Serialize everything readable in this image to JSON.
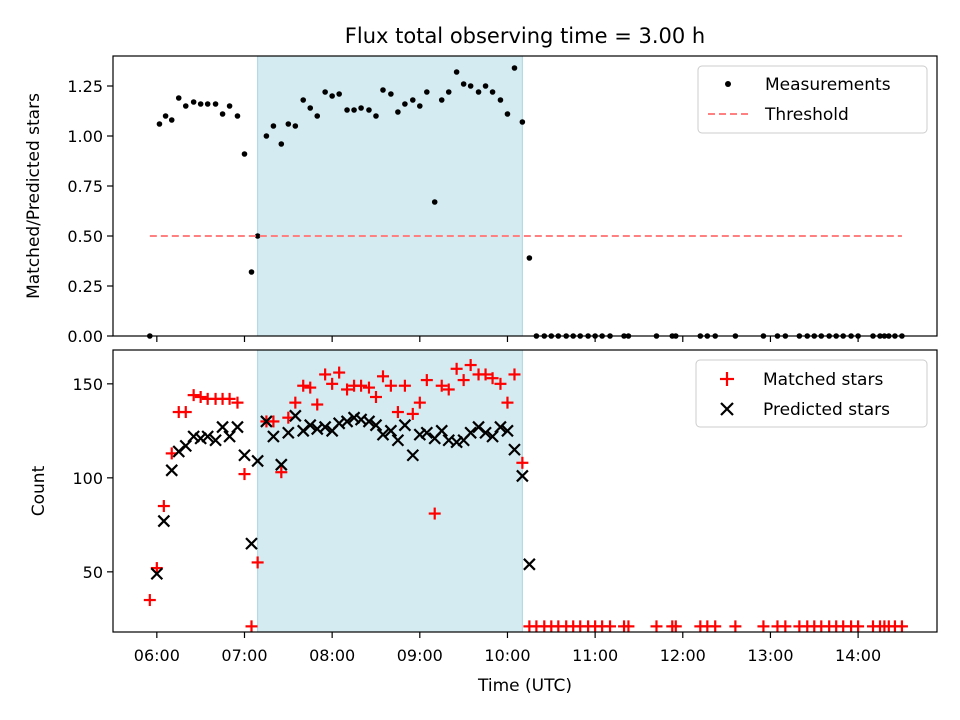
{
  "chart_data": {
    "title": "Flux total observing time = 3.00 h",
    "xlabel": "Time (UTC)",
    "x_ticks": [
      "06:00",
      "07:00",
      "08:00",
      "09:00",
      "10:00",
      "11:00",
      "12:00",
      "13:00",
      "14:00"
    ],
    "x_tick_hours": [
      6,
      7,
      8,
      9,
      10,
      11,
      12,
      13,
      14
    ],
    "xlim_hours": [
      5.5,
      14.9
    ],
    "shaded_region_hours": [
      7.15,
      10.17
    ],
    "shaded_color": "#d4ebf1",
    "panels": [
      {
        "type": "scatter",
        "ylabel": "Matched/Predicted stars",
        "ylim": [
          0,
          1.4
        ],
        "y_ticks": [
          "0.00",
          "0.25",
          "0.50",
          "0.75",
          "1.00",
          "1.25"
        ],
        "y_tick_values": [
          0,
          0.25,
          0.5,
          0.75,
          1.0,
          1.25
        ],
        "legend_position": "top-right",
        "series": [
          {
            "name": "Measurements",
            "marker": "dot",
            "color": "#000000",
            "points": [
              [
                5.92,
                0.0
              ],
              [
                6.03,
                1.06
              ],
              [
                6.1,
                1.1
              ],
              [
                6.17,
                1.08
              ],
              [
                6.25,
                1.19
              ],
              [
                6.33,
                1.15
              ],
              [
                6.42,
                1.17
              ],
              [
                6.5,
                1.16
              ],
              [
                6.58,
                1.16
              ],
              [
                6.67,
                1.16
              ],
              [
                6.75,
                1.11
              ],
              [
                6.83,
                1.15
              ],
              [
                6.92,
                1.1
              ],
              [
                7.0,
                0.91
              ],
              [
                7.08,
                0.32
              ],
              [
                7.15,
                0.5
              ],
              [
                7.25,
                1.0
              ],
              [
                7.33,
                1.05
              ],
              [
                7.42,
                0.96
              ],
              [
                7.5,
                1.06
              ],
              [
                7.58,
                1.05
              ],
              [
                7.67,
                1.18
              ],
              [
                7.75,
                1.14
              ],
              [
                7.83,
                1.1
              ],
              [
                7.92,
                1.22
              ],
              [
                8.0,
                1.2
              ],
              [
                8.08,
                1.21
              ],
              [
                8.17,
                1.13
              ],
              [
                8.25,
                1.13
              ],
              [
                8.33,
                1.14
              ],
              [
                8.42,
                1.13
              ],
              [
                8.5,
                1.1
              ],
              [
                8.58,
                1.23
              ],
              [
                8.67,
                1.21
              ],
              [
                8.75,
                1.12
              ],
              [
                8.83,
                1.16
              ],
              [
                8.92,
                1.18
              ],
              [
                9.0,
                1.15
              ],
              [
                9.08,
                1.22
              ],
              [
                9.17,
                0.67
              ],
              [
                9.25,
                1.18
              ],
              [
                9.33,
                1.22
              ],
              [
                9.42,
                1.32
              ],
              [
                9.5,
                1.26
              ],
              [
                9.58,
                1.25
              ],
              [
                9.67,
                1.22
              ],
              [
                9.75,
                1.25
              ],
              [
                9.83,
                1.22
              ],
              [
                9.92,
                1.18
              ],
              [
                10.0,
                1.11
              ],
              [
                10.08,
                1.34
              ],
              [
                10.17,
                1.07
              ],
              [
                10.25,
                0.39
              ],
              [
                10.33,
                0.0
              ],
              [
                10.42,
                0.0
              ],
              [
                10.5,
                0.0
              ],
              [
                10.58,
                0.0
              ],
              [
                10.67,
                0.0
              ],
              [
                10.75,
                0.0
              ],
              [
                10.83,
                0.0
              ],
              [
                10.92,
                0.0
              ],
              [
                11.0,
                0.0
              ],
              [
                11.08,
                0.0
              ],
              [
                11.17,
                0.0
              ],
              [
                11.33,
                0.0
              ],
              [
                11.38,
                0.0
              ],
              [
                11.7,
                0.0
              ],
              [
                11.88,
                0.0
              ],
              [
                11.92,
                0.0
              ],
              [
                12.2,
                0.0
              ],
              [
                12.28,
                0.0
              ],
              [
                12.37,
                0.0
              ],
              [
                12.6,
                0.0
              ],
              [
                12.92,
                0.0
              ],
              [
                13.08,
                0.0
              ],
              [
                13.17,
                0.0
              ],
              [
                13.33,
                0.0
              ],
              [
                13.42,
                0.0
              ],
              [
                13.5,
                0.0
              ],
              [
                13.58,
                0.0
              ],
              [
                13.67,
                0.0
              ],
              [
                13.75,
                0.0
              ],
              [
                13.83,
                0.0
              ],
              [
                13.92,
                0.0
              ],
              [
                14.0,
                0.0
              ],
              [
                14.17,
                0.0
              ],
              [
                14.25,
                0.0
              ],
              [
                14.3,
                0.0
              ],
              [
                14.35,
                0.0
              ],
              [
                14.42,
                0.0
              ],
              [
                14.5,
                0.0
              ]
            ]
          },
          {
            "name": "Threshold",
            "marker": "dashed-line",
            "color": "#ff8080",
            "points": [
              [
                5.92,
                0.5
              ],
              [
                14.5,
                0.5
              ]
            ]
          }
        ]
      },
      {
        "type": "scatter",
        "ylabel": "Count",
        "ylim": [
          18,
          168
        ],
        "y_ticks": [
          "50",
          "100",
          "150"
        ],
        "y_tick_values": [
          50,
          100,
          150
        ],
        "legend_position": "top-right",
        "series": [
          {
            "name": "Matched stars",
            "marker": "plus",
            "color": "#ff0000",
            "points": [
              [
                5.92,
                35
              ],
              [
                6.0,
                52
              ],
              [
                6.08,
                85
              ],
              [
                6.17,
                113
              ],
              [
                6.25,
                135
              ],
              [
                6.33,
                135
              ],
              [
                6.42,
                144
              ],
              [
                6.5,
                143
              ],
              [
                6.58,
                142
              ],
              [
                6.67,
                142
              ],
              [
                6.75,
                142
              ],
              [
                6.83,
                142
              ],
              [
                6.92,
                140
              ],
              [
                7.0,
                102
              ],
              [
                7.08,
                21
              ],
              [
                7.15,
                55
              ],
              [
                7.25,
                130
              ],
              [
                7.33,
                130
              ],
              [
                7.42,
                103
              ],
              [
                7.5,
                132
              ],
              [
                7.58,
                140
              ],
              [
                7.67,
                149
              ],
              [
                7.75,
                148
              ],
              [
                7.83,
                139
              ],
              [
                7.92,
                155
              ],
              [
                8.0,
                150
              ],
              [
                8.08,
                156
              ],
              [
                8.17,
                147
              ],
              [
                8.25,
                149
              ],
              [
                8.33,
                149
              ],
              [
                8.42,
                148
              ],
              [
                8.5,
                143
              ],
              [
                8.58,
                154
              ],
              [
                8.67,
                149
              ],
              [
                8.75,
                135
              ],
              [
                8.83,
                149
              ],
              [
                8.92,
                134
              ],
              [
                9.0,
                140
              ],
              [
                9.08,
                152
              ],
              [
                9.17,
                81
              ],
              [
                9.25,
                149
              ],
              [
                9.33,
                147
              ],
              [
                9.42,
                158
              ],
              [
                9.5,
                152
              ],
              [
                9.58,
                160
              ],
              [
                9.67,
                155
              ],
              [
                9.75,
                155
              ],
              [
                9.83,
                153
              ],
              [
                9.92,
                150
              ],
              [
                10.0,
                140
              ],
              [
                10.08,
                155
              ],
              [
                10.17,
                108
              ],
              [
                10.25,
                21
              ],
              [
                10.33,
                21
              ],
              [
                10.42,
                21
              ],
              [
                10.5,
                21
              ],
              [
                10.58,
                21
              ],
              [
                10.67,
                21
              ],
              [
                10.75,
                21
              ],
              [
                10.83,
                21
              ],
              [
                10.92,
                21
              ],
              [
                11.0,
                21
              ],
              [
                11.08,
                21
              ],
              [
                11.17,
                21
              ],
              [
                11.33,
                21
              ],
              [
                11.38,
                21
              ],
              [
                11.7,
                21
              ],
              [
                11.88,
                21
              ],
              [
                11.92,
                21
              ],
              [
                12.2,
                21
              ],
              [
                12.28,
                21
              ],
              [
                12.37,
                21
              ],
              [
                12.6,
                21
              ],
              [
                12.92,
                21
              ],
              [
                13.08,
                21
              ],
              [
                13.17,
                21
              ],
              [
                13.33,
                21
              ],
              [
                13.42,
                21
              ],
              [
                13.5,
                21
              ],
              [
                13.58,
                21
              ],
              [
                13.67,
                21
              ],
              [
                13.75,
                21
              ],
              [
                13.83,
                21
              ],
              [
                13.92,
                21
              ],
              [
                14.0,
                21
              ],
              [
                14.17,
                21
              ],
              [
                14.25,
                21
              ],
              [
                14.3,
                21
              ],
              [
                14.35,
                21
              ],
              [
                14.42,
                21
              ],
              [
                14.5,
                21
              ]
            ]
          },
          {
            "name": "Predicted stars",
            "marker": "x",
            "color": "#000000",
            "points": [
              [
                6.0,
                49
              ],
              [
                6.08,
                77
              ],
              [
                6.17,
                104
              ],
              [
                6.25,
                114
              ],
              [
                6.33,
                117
              ],
              [
                6.42,
                122
              ],
              [
                6.5,
                121
              ],
              [
                6.58,
                122
              ],
              [
                6.67,
                120
              ],
              [
                6.75,
                127
              ],
              [
                6.83,
                122
              ],
              [
                6.92,
                127
              ],
              [
                7.0,
                112
              ],
              [
                7.08,
                65
              ],
              [
                7.15,
                109
              ],
              [
                7.25,
                130
              ],
              [
                7.33,
                122
              ],
              [
                7.42,
                107
              ],
              [
                7.5,
                124
              ],
              [
                7.58,
                133
              ],
              [
                7.67,
                125
              ],
              [
                7.75,
                128
              ],
              [
                7.83,
                126
              ],
              [
                7.92,
                127
              ],
              [
                8.0,
                125
              ],
              [
                8.08,
                129
              ],
              [
                8.17,
                130
              ],
              [
                8.25,
                132
              ],
              [
                8.33,
                131
              ],
              [
                8.42,
                130
              ],
              [
                8.5,
                128
              ],
              [
                8.58,
                123
              ],
              [
                8.67,
                125
              ],
              [
                8.75,
                120
              ],
              [
                8.83,
                128
              ],
              [
                8.92,
                112
              ],
              [
                9.0,
                123
              ],
              [
                9.08,
                124
              ],
              [
                9.17,
                121
              ],
              [
                9.25,
                125
              ],
              [
                9.33,
                120
              ],
              [
                9.42,
                119
              ],
              [
                9.5,
                120
              ],
              [
                9.58,
                124
              ],
              [
                9.67,
                127
              ],
              [
                9.75,
                124
              ],
              [
                9.83,
                122
              ],
              [
                9.92,
                127
              ],
              [
                10.0,
                125
              ],
              [
                10.08,
                115
              ],
              [
                10.17,
                101
              ],
              [
                10.25,
                54
              ]
            ]
          }
        ]
      }
    ]
  }
}
